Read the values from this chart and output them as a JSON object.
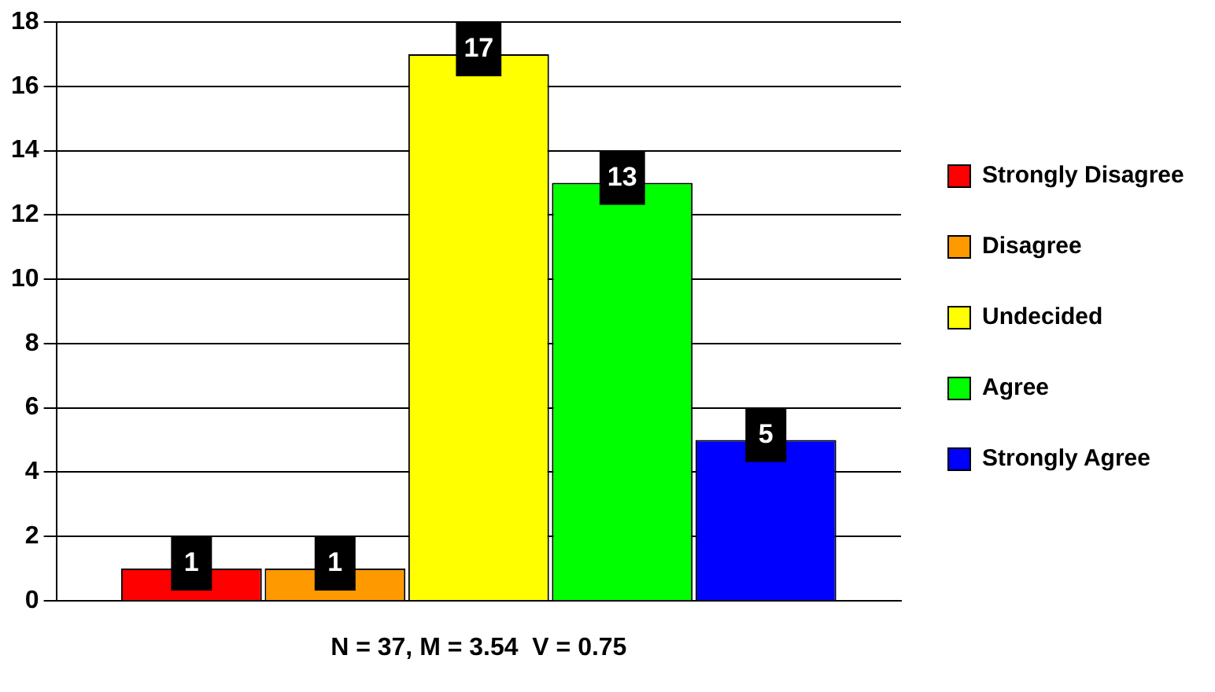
{
  "chart_data": {
    "type": "bar",
    "categories": [
      null
    ],
    "series": [
      {
        "name": "Strongly Disagree",
        "color": "#ff0000",
        "values": [
          1
        ]
      },
      {
        "name": "Disagree",
        "color": "#ff9900",
        "values": [
          1
        ]
      },
      {
        "name": "Undecided",
        "color": "#ffff00",
        "values": [
          17
        ]
      },
      {
        "name": "Agree",
        "color": "#00ff00",
        "values": [
          13
        ]
      },
      {
        "name": "Strongly Agree",
        "color": "#0000ff",
        "values": [
          5
        ]
      }
    ],
    "ylim": [
      0,
      18
    ],
    "yticks": [
      0,
      2,
      4,
      6,
      8,
      10,
      12,
      14,
      16,
      18
    ],
    "grid": "y",
    "legend": "right",
    "data_labels": true,
    "annotations": [
      "N = 37, M = 3.54  V = 0.75"
    ]
  }
}
